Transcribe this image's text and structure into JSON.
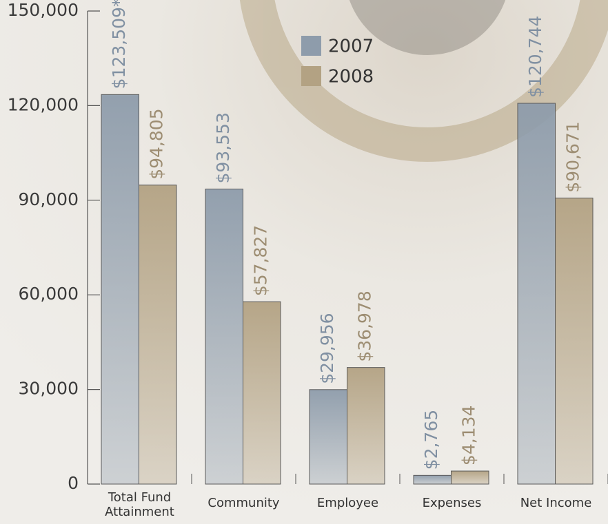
{
  "chart_data": {
    "type": "bar",
    "categories": [
      "Total Fund Attainment",
      "Community",
      "Employee",
      "Expenses",
      "Net Income"
    ],
    "series": [
      {
        "name": "2007",
        "color": "#8e9cab",
        "values": [
          123509,
          93553,
          29956,
          2765,
          120744
        ],
        "value_labels": [
          "$123,509*",
          "$93,553",
          "$29,956",
          "$2,765",
          "$120,744"
        ]
      },
      {
        "name": "2008",
        "color": "#b3a283",
        "values": [
          94805,
          57827,
          36978,
          4134,
          90671
        ],
        "value_labels": [
          "$94,805",
          "$57,827",
          "$36,978",
          "$4,134",
          "$90,671"
        ]
      }
    ],
    "ylim": [
      0,
      150000
    ],
    "yticks": [
      {
        "value": 0,
        "label": "0"
      },
      {
        "value": 30000,
        "label": "30,000"
      },
      {
        "value": 60000,
        "label": "60,000"
      },
      {
        "value": 90000,
        "label": "90,000"
      },
      {
        "value": 120000,
        "label": "120,000"
      },
      {
        "value": 150000,
        "label": "150,000"
      }
    ]
  }
}
